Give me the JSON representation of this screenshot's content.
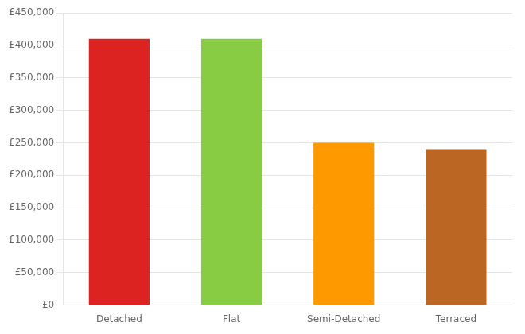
{
  "chart_data": {
    "type": "bar",
    "categories": [
      "Detached",
      "Flat",
      "Semi-Detached",
      "Terraced"
    ],
    "values": [
      410000,
      410000,
      250000,
      240000
    ],
    "colors": [
      "#dd2222",
      "#88cc44",
      "#ff9900",
      "#bb6622"
    ],
    "ylim": [
      0,
      450000
    ],
    "yticks": [
      {
        "value": 0,
        "label": "£0"
      },
      {
        "value": 50000,
        "label": "£50,000"
      },
      {
        "value": 100000,
        "label": "£100,000"
      },
      {
        "value": 150000,
        "label": "£150,000"
      },
      {
        "value": 200000,
        "label": "£200,000"
      },
      {
        "value": 250000,
        "label": "£250,000"
      },
      {
        "value": 300000,
        "label": "£300,000"
      },
      {
        "value": 350000,
        "label": "£350,000"
      },
      {
        "value": 400000,
        "label": "£400,000"
      },
      {
        "value": 450000,
        "label": "£450,000"
      }
    ],
    "grid": true
  }
}
